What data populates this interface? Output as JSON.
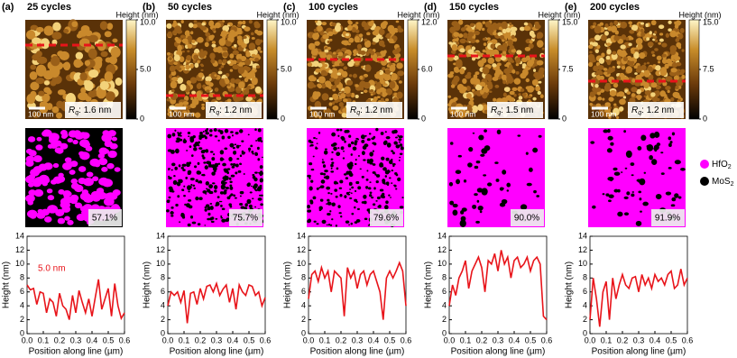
{
  "panels": [
    {
      "label": "(a)",
      "title": "25 cycles",
      "colorbar_label": "Height (nm)",
      "colorbar_lim": [
        0,
        10
      ],
      "colorbar_ticks": [
        0,
        {
          "value": 5,
          "label": "5.0"
        },
        {
          "value": 10,
          "label": "10.0"
        }
      ],
      "scale_bar": "100 nm",
      "rq_symbol": "R",
      "rq_sub": "q",
      "rq_value": ": 1.6 nm",
      "coverage": "57.1%"
    },
    {
      "label": "(b)",
      "title": "50 cycles",
      "colorbar_label": "Height (nm)",
      "colorbar_lim": [
        0,
        10
      ],
      "colorbar_ticks": [
        0,
        {
          "value": 5,
          "label": "5.0"
        },
        {
          "value": 10,
          "label": "10.0"
        }
      ],
      "scale_bar": "100 nm",
      "rq_symbol": "R",
      "rq_sub": "q",
      "rq_value": ": 1.2 nm",
      "coverage": "75.7%"
    },
    {
      "label": "(c)",
      "title": "100 cycles",
      "colorbar_label": "Height (nm)",
      "colorbar_lim": [
        0,
        12
      ],
      "colorbar_ticks": [
        0,
        {
          "value": 6,
          "label": "6.0"
        },
        {
          "value": 12,
          "label": "12.0"
        }
      ],
      "scale_bar": "100 nm",
      "rq_symbol": "R",
      "rq_sub": "q",
      "rq_value": ": 1.2 nm",
      "coverage": "79.6%"
    },
    {
      "label": "(d)",
      "title": "150 cycles",
      "colorbar_label": "Height (nm)",
      "colorbar_lim": [
        0,
        15
      ],
      "colorbar_ticks": [
        0,
        7.5,
        {
          "value": 15,
          "label": "15.0"
        }
      ],
      "scale_bar": "100 nm",
      "rq_symbol": "R",
      "rq_sub": "q",
      "rq_value": ": 1.5 nm",
      "coverage": "90.0%"
    },
    {
      "label": "(e)",
      "title": "200 cycles",
      "colorbar_label": "Height (nm)",
      "colorbar_lim": [
        0,
        15
      ],
      "colorbar_ticks": [
        0,
        7.5,
        {
          "value": 15,
          "label": "15.0"
        }
      ],
      "scale_bar": "100 nm",
      "rq_symbol": "R",
      "rq_sub": "q",
      "rq_value": ": 1.2 nm",
      "coverage": "91.9%"
    }
  ],
  "legend": [
    {
      "name": "HfO",
      "sub": "2",
      "color": "#ff00ff"
    },
    {
      "name": "MoS",
      "sub": "2",
      "color": "#000000"
    }
  ],
  "chart_data": [
    {
      "type": "line",
      "y_label": "Height (nm)",
      "x_label": "Position along line (µm)",
      "annotation": "5.0 nm",
      "color": "#e8141a",
      "x": [
        0,
        0.02,
        0.04,
        0.06,
        0.08,
        0.1,
        0.12,
        0.14,
        0.16,
        0.18,
        0.2,
        0.22,
        0.24,
        0.26,
        0.28,
        0.3,
        0.32,
        0.34,
        0.36,
        0.38,
        0.4,
        0.42,
        0.44,
        0.46,
        0.48,
        0.5,
        0.52,
        0.54,
        0.56,
        0.58,
        0.6
      ],
      "values": [
        7,
        6.3,
        6.5,
        4.2,
        6,
        5.8,
        3,
        5,
        4.5,
        2.5,
        5.8,
        4,
        3.5,
        2,
        5.5,
        3,
        6.2,
        4.5,
        3,
        5,
        2.5,
        5.2,
        7.8,
        3.5,
        5,
        6.5,
        2.5,
        7.2,
        4,
        2.2,
        3
      ],
      "xlim": [
        0,
        0.6
      ],
      "xticks": [
        {
          "value": 0,
          "label": "0.0"
        },
        0.1,
        0.2,
        0.3,
        0.4,
        0.5,
        0.6
      ],
      "ylim": [
        0,
        14
      ],
      "yticks": [
        0,
        2,
        4,
        6,
        8,
        10,
        12,
        14
      ]
    },
    {
      "type": "line",
      "y_label": "Height (nm)",
      "x_label": "Position along line (µm)",
      "color": "#e8141a",
      "x": [
        0,
        0.02,
        0.04,
        0.06,
        0.08,
        0.1,
        0.12,
        0.14,
        0.16,
        0.18,
        0.2,
        0.22,
        0.24,
        0.26,
        0.28,
        0.3,
        0.32,
        0.34,
        0.36,
        0.38,
        0.4,
        0.42,
        0.44,
        0.46,
        0.48,
        0.5,
        0.52,
        0.54,
        0.56,
        0.58,
        0.6
      ],
      "values": [
        4,
        6,
        5.5,
        6,
        4.5,
        6.2,
        1.5,
        5.8,
        6,
        4.2,
        6.5,
        5,
        6.8,
        7,
        6,
        7.2,
        5.5,
        6.4,
        7,
        4.5,
        6.5,
        3.5,
        7,
        6,
        5.5,
        7,
        6.8,
        5.5,
        6,
        4,
        5.2
      ],
      "xlim": [
        0,
        0.6
      ],
      "xticks": [
        {
          "value": 0,
          "label": "0.0"
        },
        0.1,
        0.2,
        0.3,
        0.4,
        0.5,
        0.6
      ],
      "ylim": [
        0,
        14
      ],
      "yticks": [
        0,
        2,
        4,
        6,
        8,
        10,
        12,
        14
      ]
    },
    {
      "type": "line",
      "y_label": "Height (nm)",
      "x_label": "Position along line (µm)",
      "color": "#e8141a",
      "x": [
        0,
        0.02,
        0.04,
        0.06,
        0.08,
        0.1,
        0.12,
        0.14,
        0.16,
        0.18,
        0.2,
        0.22,
        0.24,
        0.26,
        0.28,
        0.3,
        0.32,
        0.34,
        0.36,
        0.38,
        0.4,
        0.42,
        0.44,
        0.46,
        0.48,
        0.5,
        0.52,
        0.54,
        0.56,
        0.58,
        0.6
      ],
      "values": [
        5,
        8.5,
        9,
        7.5,
        9.5,
        8,
        9,
        6,
        9,
        8.5,
        8,
        2.5,
        9.5,
        8,
        9,
        6.5,
        8.5,
        9,
        7,
        8.5,
        9,
        7.5,
        6,
        2,
        8,
        9,
        8,
        9,
        10.2,
        9,
        4
      ],
      "xlim": [
        0,
        0.6
      ],
      "xticks": [
        {
          "value": 0,
          "label": "0.0"
        },
        0.1,
        0.2,
        0.3,
        0.4,
        0.5,
        0.6
      ],
      "ylim": [
        0,
        14
      ],
      "yticks": [
        0,
        2,
        4,
        6,
        8,
        10,
        12,
        14
      ]
    },
    {
      "type": "line",
      "y_label": "Height (nm)",
      "x_label": "Position along line (µm)",
      "color": "#e8141a",
      "x": [
        0,
        0.02,
        0.04,
        0.06,
        0.08,
        0.1,
        0.12,
        0.14,
        0.16,
        0.18,
        0.2,
        0.22,
        0.24,
        0.26,
        0.28,
        0.3,
        0.32,
        0.34,
        0.36,
        0.38,
        0.4,
        0.42,
        0.44,
        0.46,
        0.48,
        0.5,
        0.52,
        0.54,
        0.56,
        0.58,
        0.6
      ],
      "values": [
        4,
        7,
        5.5,
        8,
        9,
        10.5,
        6.5,
        9,
        10,
        11,
        9.5,
        6,
        10.5,
        10,
        11.5,
        9,
        12,
        10,
        11,
        8,
        10.5,
        11,
        9.5,
        10,
        11,
        9,
        10.5,
        11,
        10,
        2.5,
        2
      ],
      "xlim": [
        0,
        0.6
      ],
      "xticks": [
        {
          "value": 0,
          "label": "0.0"
        },
        0.1,
        0.2,
        0.3,
        0.4,
        0.5,
        0.6
      ],
      "ylim": [
        0,
        14
      ],
      "yticks": [
        0,
        2,
        4,
        6,
        8,
        10,
        12,
        14
      ]
    },
    {
      "type": "line",
      "y_label": "Height (nm)",
      "x_label": "Position along line (µm)",
      "color": "#e8141a",
      "x": [
        0,
        0.02,
        0.04,
        0.06,
        0.08,
        0.1,
        0.12,
        0.14,
        0.16,
        0.18,
        0.2,
        0.22,
        0.24,
        0.26,
        0.28,
        0.3,
        0.32,
        0.34,
        0.36,
        0.38,
        0.4,
        0.42,
        0.44,
        0.46,
        0.48,
        0.5,
        0.52,
        0.54,
        0.56,
        0.58,
        0.6
      ],
      "values": [
        2,
        8,
        5,
        1,
        6,
        7.5,
        2,
        8,
        5,
        7,
        8.5,
        7,
        6.5,
        8,
        8.2,
        6,
        8.5,
        7,
        8,
        6.5,
        8.5,
        7.5,
        8,
        7,
        8.5,
        9,
        6.5,
        7,
        9.3,
        7,
        8
      ],
      "xlim": [
        0,
        0.6
      ],
      "xticks": [
        {
          "value": 0,
          "label": "0.0"
        },
        0.1,
        0.2,
        0.3,
        0.4,
        0.5,
        0.6
      ],
      "ylim": [
        0,
        14
      ],
      "yticks": [
        0,
        2,
        4,
        6,
        8,
        10,
        12,
        14
      ]
    }
  ]
}
